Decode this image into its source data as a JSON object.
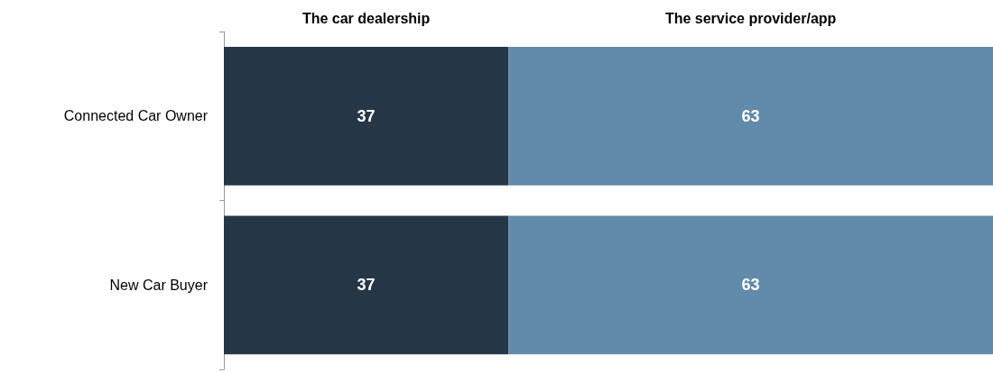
{
  "chart_data": {
    "type": "bar",
    "orientation": "horizontal",
    "stacked": true,
    "categories": [
      "Connected Car Owner",
      "New Car Buyer"
    ],
    "series": [
      {
        "name": "The car dealership",
        "color": "#253746",
        "values": [
          37,
          37
        ]
      },
      {
        "name": "The service provider/app",
        "color": "#628aab",
        "values": [
          63,
          63
        ]
      }
    ],
    "xlim": [
      0,
      100
    ],
    "data_labels": true,
    "tick_labels": "y"
  }
}
